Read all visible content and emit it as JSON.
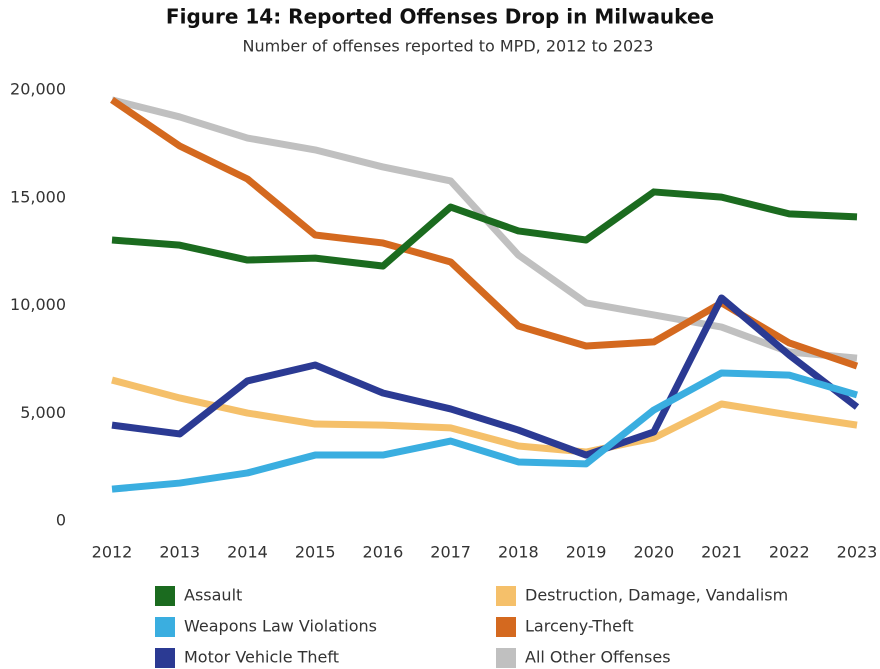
{
  "chart_data": {
    "type": "line",
    "title": "Figure 14: Reported Offenses Drop in Milwaukee",
    "subtitle": "Number of offenses reported to MPD, 2012 to 2023",
    "categories": [
      "2012",
      "2013",
      "2014",
      "2015",
      "2016",
      "2017",
      "2018",
      "2019",
      "2020",
      "2021",
      "2022",
      "2023"
    ],
    "series": [
      {
        "name": "Assault",
        "color": "#1b6b1f",
        "values": [
          13040,
          12800,
          12110,
          12200,
          11830,
          14570,
          13460,
          13040,
          15270,
          15030,
          14250,
          14110
        ]
      },
      {
        "name": "Weapons Law Violations",
        "color": "#3aaee0",
        "values": [
          1480,
          1760,
          2230,
          3060,
          3060,
          3710,
          2740,
          2650,
          5150,
          6870,
          6770,
          5850
        ]
      },
      {
        "name": "Motor Vehicle Theft",
        "color": "#2b3a93",
        "values": [
          4450,
          4040,
          6500,
          7240,
          5940,
          5200,
          4220,
          3060,
          4130,
          10350,
          7700,
          5290
        ]
      },
      {
        "name": "Destruction, Damage, Vandalism",
        "color": "#f5c06a",
        "values": [
          6540,
          5710,
          5010,
          4500,
          4450,
          4320,
          3480,
          3200,
          3850,
          5430,
          4920,
          4450
        ]
      },
      {
        "name": "Larceny-Theft",
        "color": "#d4691f",
        "values": [
          19540,
          17400,
          15870,
          13270,
          12900,
          12020,
          9050,
          8120,
          8310,
          10120,
          8260,
          7190
        ]
      },
      {
        "name": "All Other Offenses",
        "color": "#c0c0c0",
        "values": [
          19540,
          18750,
          17770,
          17220,
          16430,
          15780,
          12340,
          10120,
          9560,
          9000,
          7840,
          7560
        ]
      }
    ],
    "ylim": [
      0,
      20000
    ],
    "yticks": [
      0,
      {
        "value": 5000,
        "label": "5,000"
      },
      {
        "value": 10000,
        "label": "10,000"
      },
      {
        "value": 15000,
        "label": "15,000"
      },
      {
        "value": 20000,
        "label": "20,000"
      }
    ],
    "grid": false
  }
}
